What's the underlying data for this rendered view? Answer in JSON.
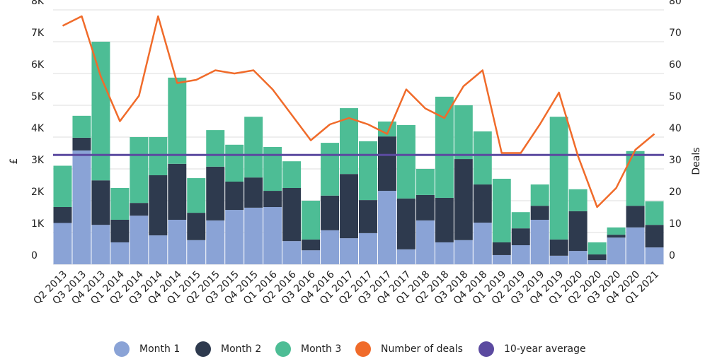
{
  "chart_data": {
    "type": "bar",
    "stacked": true,
    "categories": [
      "Q2 2013",
      "Q3 2013",
      "Q4 2013",
      "Q1 2014",
      "Q2 2014",
      "Q3 2014",
      "Q4 2014",
      "Q1 2015",
      "Q2 2015",
      "Q3 2015",
      "Q4 2015",
      "Q1 2016",
      "Q2 2016",
      "Q3 2016",
      "Q4 2016",
      "Q1 2017",
      "Q2 2017",
      "Q3 2017",
      "Q4 2017",
      "Q1 2018",
      "Q2 2018",
      "Q3 2018",
      "Q4 2018",
      "Q1 2019",
      "Q2 2019",
      "Q3 2019",
      "Q4 2019",
      "Q1 2020",
      "Q2 2020",
      "Q3 2020",
      "Q4 2020",
      "Q1 2021"
    ],
    "series": [
      {
        "name": "Month 1",
        "color": "#8aa3d6",
        "values": [
          1300,
          3580,
          1240,
          690,
          1530,
          910,
          1400,
          760,
          1380,
          1710,
          1780,
          1800,
          730,
          440,
          1070,
          820,
          980,
          2310,
          470,
          1380,
          690,
          760,
          1310,
          290,
          600,
          1400,
          270,
          420,
          130,
          840,
          1160,
          530
        ]
      },
      {
        "name": "Month 2",
        "color": "#2e3a4e",
        "values": [
          500,
          400,
          1400,
          710,
          400,
          1890,
          1760,
          860,
          1690,
          890,
          950,
          510,
          1670,
          340,
          1090,
          2020,
          1040,
          1710,
          1600,
          800,
          1400,
          2550,
          1200,
          400,
          530,
          440,
          510,
          1250,
          180,
          90,
          680,
          710
        ]
      },
      {
        "name": "Month 3",
        "color": "#4dbd95",
        "values": [
          1300,
          690,
          4360,
          1000,
          2070,
          1200,
          2710,
          1090,
          1150,
          1160,
          1910,
          1380,
          840,
          1220,
          1660,
          2070,
          1850,
          470,
          2310,
          820,
          3180,
          1690,
          1670,
          2000,
          510,
          670,
          3860,
          690,
          380,
          230,
          1720,
          740
        ]
      },
      {
        "name": "Number of deals",
        "color": "#f06b2a",
        "type": "line",
        "axis": "y2",
        "values": [
          75,
          78,
          59,
          45,
          53,
          78,
          57,
          58,
          61,
          60,
          61,
          55,
          47,
          39,
          44,
          46,
          44,
          41,
          55,
          49,
          46,
          56,
          61,
          35,
          35,
          44,
          54,
          34,
          18,
          24,
          36,
          41
        ]
      }
    ],
    "average": {
      "name": "10-year average",
      "color": "#5b4aa0",
      "value": 3440
    },
    "ylabel": "£",
    "y2label": "Deals",
    "ylim": [
      0,
      8000
    ],
    "yticks": [
      0,
      {
        "value": 1000,
        "label": "1K"
      },
      {
        "value": 2000,
        "label": "2K"
      },
      {
        "value": 3000,
        "label": "3K"
      },
      {
        "value": 4000,
        "label": "4K"
      },
      {
        "value": 5000,
        "label": "5K"
      },
      {
        "value": 6000,
        "label": "6K"
      },
      {
        "value": 7000,
        "label": "7K"
      },
      {
        "value": 8000,
        "label": "8K"
      }
    ],
    "y2lim": [
      0,
      80
    ],
    "y2ticks": [
      0,
      10,
      20,
      30,
      40,
      50,
      60,
      70,
      80
    ],
    "grid": true,
    "legend": "bottom"
  }
}
